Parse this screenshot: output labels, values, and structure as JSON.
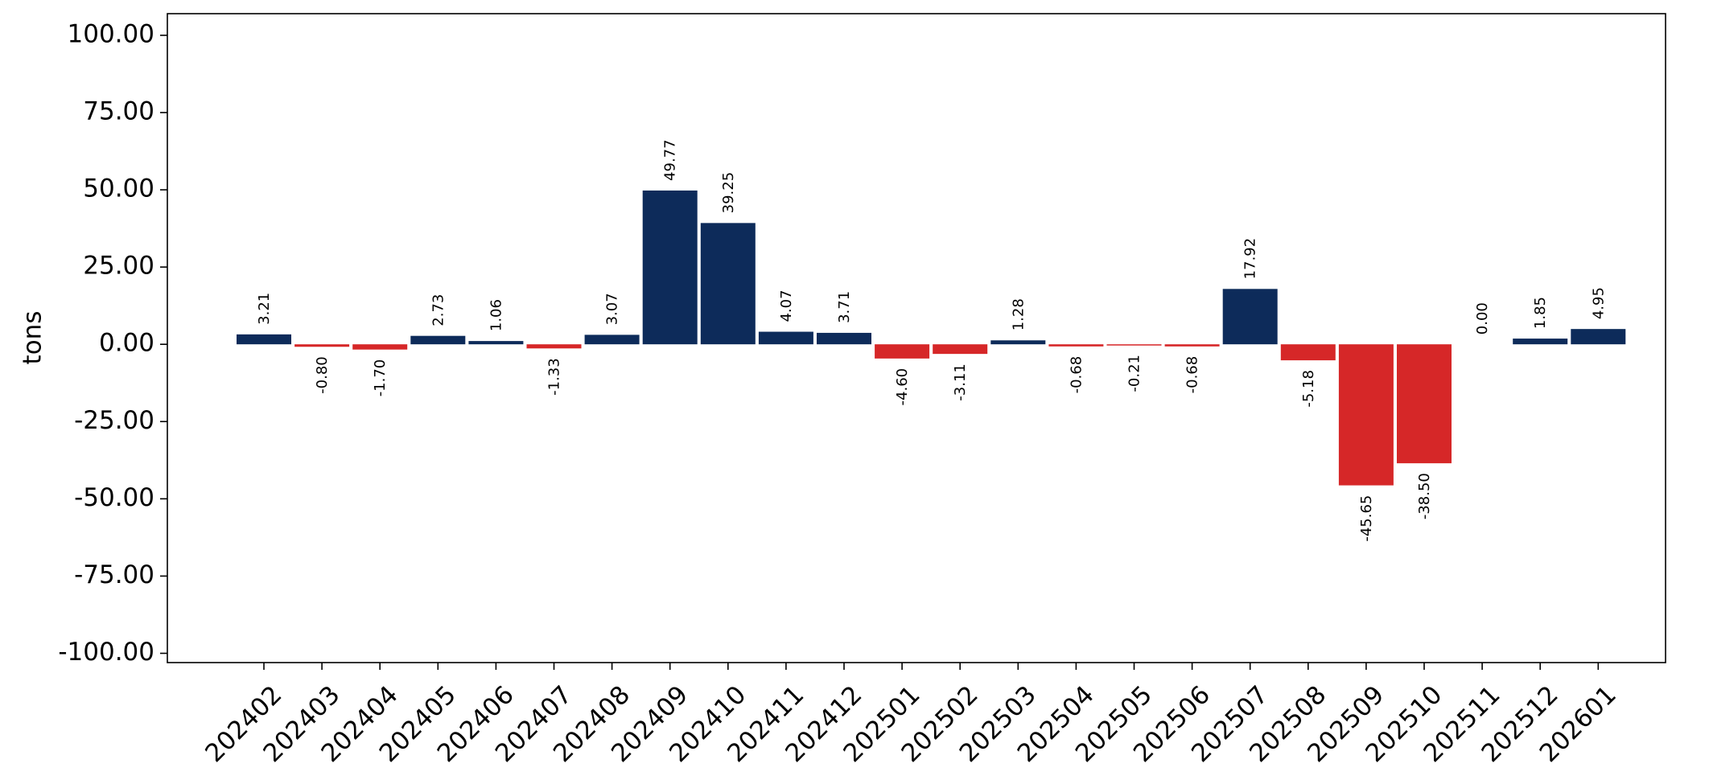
{
  "chart_data": {
    "type": "bar",
    "title": "",
    "xlabel": "",
    "ylabel": "tons",
    "ylim": [
      -103,
      107
    ],
    "yticks": [
      100,
      75,
      50,
      25,
      0,
      -25,
      -50,
      -75,
      -100
    ],
    "ytick_labels": [
      "100.00",
      "75.00",
      "50.00",
      "25.00",
      "0.00",
      "-25.00",
      "-50.00",
      "-75.00",
      "-100.00"
    ],
    "grid": false,
    "legend": "none",
    "colors": {
      "positive": "#0d2b5a",
      "negative": "#d62728"
    },
    "categories": [
      "202402",
      "202403",
      "202404",
      "202405",
      "202406",
      "202407",
      "202408",
      "202409",
      "202410",
      "202411",
      "202412",
      "202501",
      "202502",
      "202503",
      "202504",
      "202505",
      "202506",
      "202507",
      "202508",
      "202509",
      "202510",
      "202511",
      "202512",
      "202601"
    ],
    "values": [
      3.21,
      -0.8,
      -1.7,
      2.73,
      1.06,
      -1.33,
      3.07,
      49.77,
      39.25,
      4.07,
      3.71,
      -4.6,
      -3.11,
      1.28,
      -0.68,
      -0.21,
      -0.68,
      17.92,
      -5.18,
      -45.65,
      -38.5,
      0.0,
      1.85,
      4.95
    ],
    "value_labels": [
      "3.21",
      "-0.80",
      "-1.70",
      "2.73",
      "1.06",
      "-1.33",
      "3.07",
      "49.77",
      "39.25",
      "4.07",
      "3.71",
      "-4.60",
      "-3.11",
      "1.28",
      "-0.68",
      "-0.21",
      "-0.68",
      "17.92",
      "-5.18",
      "-45.65",
      "-38.50",
      "0.00",
      "1.85",
      "4.95"
    ]
  }
}
